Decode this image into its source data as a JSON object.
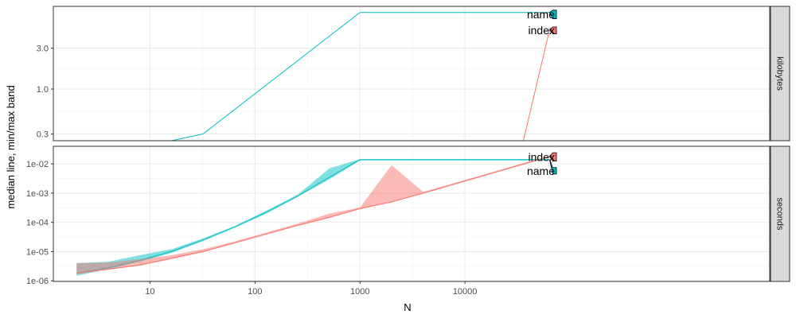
{
  "chart_data": {
    "type": "line",
    "xlabel": "N",
    "ylabel": "median line, min/max band",
    "x_scale": "log10",
    "xlim": [
      1.2,
      8000000
    ],
    "x_ticks": [
      {
        "value": 10,
        "label": "10"
      },
      {
        "value": 100,
        "label": "100"
      },
      {
        "value": 1000,
        "label": "1000"
      },
      {
        "value": 10000,
        "label": "10000"
      }
    ],
    "grid": true,
    "colors": {
      "index": "#F8766D",
      "name": "#00BFC4"
    },
    "panels": [
      {
        "strip": "kilobytes",
        "y_scale": "log10",
        "ylim": [
          0.25,
          9.2
        ],
        "y_ticks": [
          {
            "value": 0.3,
            "label": "0.3"
          },
          {
            "value": 1.0,
            "label": "1.0"
          },
          {
            "value": 3.0,
            "label": "3.0"
          }
        ],
        "series": [
          {
            "name": "name",
            "x": [
              1.3,
              16,
              32,
              1000,
              64000
            ],
            "y": [
              0.15,
              0.25,
              0.3,
              7.8,
              7.8
            ],
            "label": {
              "text": "name",
              "y_lo": 6.6,
              "y_hi": 8.3
            }
          },
          {
            "name": "index",
            "x": [
              36000,
              64000
            ],
            "y": [
              0.25,
              4.9
            ],
            "label": {
              "text": "index",
              "y_lo": 4.4,
              "y_hi": 5.3
            }
          }
        ]
      },
      {
        "strip": "seconds",
        "y_scale": "log10",
        "ylim": [
          9.5e-07,
          0.04
        ],
        "y_ticks": [
          {
            "value": 1e-06,
            "label": "1e-06"
          },
          {
            "value": 1e-05,
            "label": "1e-05"
          },
          {
            "value": 0.0001,
            "label": "1e-04"
          },
          {
            "value": 0.001,
            "label": "1e-03"
          },
          {
            "value": 0.01,
            "label": "1e-02"
          }
        ],
        "series": [
          {
            "name": "name",
            "x": [
              2,
              4,
              8,
              16,
              32,
              64,
              128,
              256,
              512,
              1000,
              64000
            ],
            "y": [
              1.8e-06,
              2.8e-06,
              5e-06,
              1e-05,
              2.5e-05,
              7e-05,
              0.00022,
              0.0008,
              0.0035,
              0.014,
              0.014
            ],
            "ymin": [
              1.5e-06,
              2.5e-06,
              4.5e-06,
              9e-06,
              2.3e-05,
              6.5e-05,
              0.0002,
              0.00075,
              0.003,
              0.013,
              0.013
            ],
            "ymax": [
              4e-06,
              4.5e-06,
              7.5e-06,
              1.2e-05,
              2.8e-05,
              7.5e-05,
              0.00025,
              0.0009,
              0.007,
              0.0145,
              0.0145
            ],
            "label": {
              "text": "name",
              "y_lo": 0.0045,
              "y_hi": 0.0075
            }
          },
          {
            "name": "index",
            "x": [
              2,
              4,
              8,
              16,
              32,
              64,
              128,
              256,
              512,
              1000,
              2000,
              4000,
              64000
            ],
            "y": [
              1.8e-06,
              2.5e-06,
              3.5e-06,
              6e-06,
              1e-05,
              2e-05,
              4e-05,
              8e-05,
              0.00015,
              0.0003,
              0.0005,
              0.001,
              0.018
            ],
            "ymin": [
              1.7e-06,
              2.4e-06,
              3.3e-06,
              5.5e-06,
              9.5e-06,
              1.9e-05,
              3.8e-05,
              7.5e-05,
              0.00014,
              0.00028,
              0.00048,
              0.00095,
              0.017
            ],
            "ymax": [
              4e-06,
              4.2e-06,
              5.5e-06,
              7.5e-06,
              1.2e-05,
              2.2e-05,
              4.5e-05,
              9e-05,
              0.0002,
              0.00032,
              0.009,
              0.0011,
              0.019
            ],
            "label": {
              "text": "index",
              "y_lo": 0.0125,
              "y_hi": 0.024
            }
          }
        ]
      }
    ]
  }
}
